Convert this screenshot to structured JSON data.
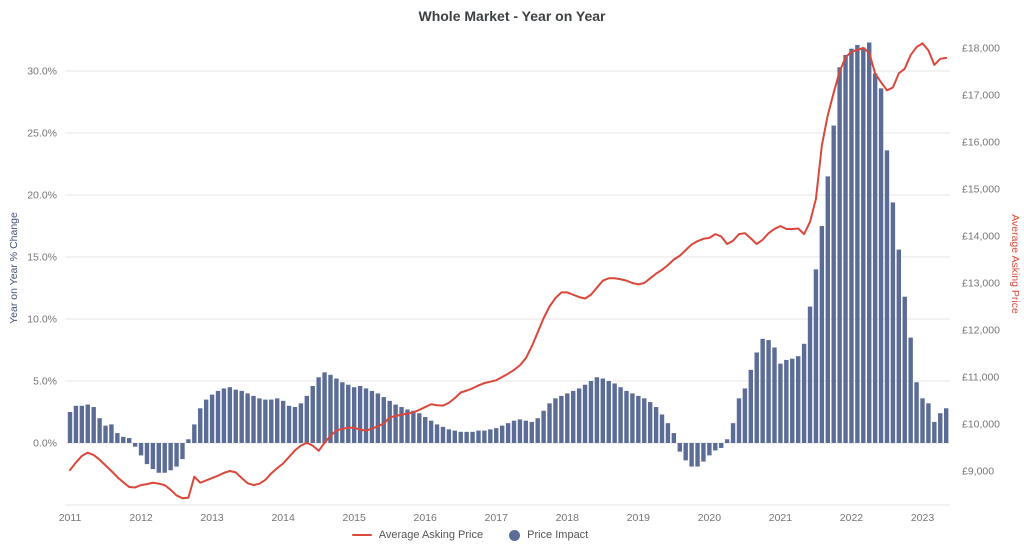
{
  "title": "Whole Market - Year on Year",
  "legend": {
    "line_series_label": "Average Asking Price",
    "bar_series_label": "Price Impact"
  },
  "axes": {
    "left_title": "Year on Year % Change",
    "right_title": "Average Asking Price",
    "left_tick_labels": [
      "0.0%",
      "5.0%",
      "10.0%",
      "15.0%",
      "20.0%",
      "25.0%",
      "30.0%"
    ],
    "right_tick_labels": [
      "£9,000",
      "£10,000",
      "£11,000",
      "£12,000",
      "£13,000",
      "£14,000",
      "£15,000",
      "£16,000",
      "£17,000",
      "£18,000"
    ],
    "x_tick_labels": [
      "2011",
      "2012",
      "2013",
      "2014",
      "2015",
      "2016",
      "2017",
      "2018",
      "2019",
      "2020",
      "2021",
      "2022",
      "2023"
    ]
  },
  "colors": {
    "bar": "#5b6c97",
    "line": "#d9483b",
    "gridline": "#e6e6e6",
    "tick_text": "#757575",
    "title_text": "#3c4043",
    "left_axis_title_text": "#44517a"
  },
  "chart_data": {
    "type": "combo: monthly bars + line",
    "title": "Whole Market - Year on Year",
    "x_start": "2011-01",
    "x_frequency": "monthly",
    "x_tick_labels": [
      "2011",
      "2012",
      "2013",
      "2014",
      "2015",
      "2016",
      "2017",
      "2018",
      "2019",
      "2020",
      "2021",
      "2022",
      "2023"
    ],
    "left_axis": {
      "label": "Year on Year % Change",
      "unit": "percent",
      "range": [
        -5,
        32.5
      ],
      "tick_step": 5,
      "ticks": [
        0,
        5,
        10,
        15,
        20,
        25,
        30
      ]
    },
    "right_axis": {
      "label": "Average Asking Price",
      "unit": "GBP",
      "range": [
        9000,
        18000
      ],
      "tick_step": 1000,
      "ticks": [
        9000,
        10000,
        11000,
        12000,
        13000,
        14000,
        15000,
        16000,
        17000,
        18000
      ]
    },
    "grid": true,
    "legend_position": "bottom-center",
    "series": [
      {
        "name": "Price Impact",
        "type": "bar",
        "axis": "left",
        "unit": "% year-on-year",
        "values": [
          2.5,
          3.0,
          3.0,
          3.1,
          2.9,
          2.0,
          1.4,
          1.5,
          0.8,
          0.5,
          0.4,
          -0.3,
          -1.0,
          -1.7,
          -2.1,
          -2.4,
          -2.4,
          -2.2,
          -1.9,
          -1.3,
          0.3,
          1.5,
          2.8,
          3.5,
          3.9,
          4.2,
          4.4,
          4.5,
          4.3,
          4.2,
          4.0,
          3.8,
          3.6,
          3.5,
          3.5,
          3.6,
          3.4,
          3.0,
          2.9,
          3.2,
          3.8,
          4.6,
          5.3,
          5.7,
          5.5,
          5.2,
          4.9,
          4.7,
          4.5,
          4.6,
          4.4,
          4.2,
          4.0,
          3.7,
          3.4,
          3.1,
          2.9,
          2.7,
          2.6,
          2.4,
          2.1,
          1.8,
          1.5,
          1.3,
          1.1,
          1.0,
          0.9,
          0.9,
          0.9,
          1.0,
          1.0,
          1.1,
          1.2,
          1.4,
          1.6,
          1.8,
          1.9,
          1.8,
          1.7,
          2.0,
          2.6,
          3.2,
          3.6,
          3.8,
          4.0,
          4.2,
          4.4,
          4.7,
          5.0,
          5.3,
          5.2,
          5.0,
          4.8,
          4.5,
          4.2,
          4.0,
          3.8,
          3.6,
          3.3,
          2.9,
          2.3,
          1.6,
          0.8,
          -0.7,
          -1.4,
          -1.9,
          -1.9,
          -1.5,
          -1.0,
          -0.6,
          -0.4,
          0.3,
          1.6,
          3.6,
          4.4,
          5.9,
          7.3,
          8.4,
          8.3,
          7.7,
          6.4,
          6.7,
          6.8,
          7.0,
          8.0,
          11.0,
          14.0,
          17.5,
          21.5,
          25.6,
          30.3,
          31.3,
          31.8,
          32.1,
          31.9,
          32.3,
          29.8,
          28.6,
          23.6,
          19.4,
          15.6,
          11.8,
          8.5,
          4.9,
          3.6,
          3.2,
          1.7,
          2.4,
          2.8
        ]
      },
      {
        "name": "Average Asking Price",
        "type": "line",
        "axis": "right",
        "unit": "GBP",
        "values": [
          9020,
          9180,
          9320,
          9390,
          9340,
          9240,
          9120,
          9000,
          8870,
          8760,
          8660,
          8650,
          8700,
          8720,
          8750,
          8730,
          8700,
          8600,
          8480,
          8420,
          8430,
          8880,
          8750,
          8800,
          8850,
          8900,
          8960,
          9000,
          8970,
          8850,
          8740,
          8700,
          8730,
          8810,
          8950,
          9060,
          9160,
          9300,
          9440,
          9540,
          9600,
          9540,
          9430,
          9600,
          9750,
          9860,
          9900,
          9920,
          9920,
          9880,
          9860,
          9900,
          9950,
          10010,
          10140,
          10170,
          10200,
          10220,
          10250,
          10300,
          10360,
          10420,
          10400,
          10390,
          10450,
          10550,
          10670,
          10710,
          10760,
          10820,
          10870,
          10900,
          10930,
          11000,
          11070,
          11150,
          11250,
          11400,
          11650,
          11950,
          12250,
          12500,
          12680,
          12800,
          12800,
          12750,
          12700,
          12670,
          12750,
          12900,
          13050,
          13100,
          13100,
          13080,
          13050,
          13000,
          12970,
          13000,
          13100,
          13200,
          13280,
          13380,
          13500,
          13580,
          13700,
          13820,
          13890,
          13940,
          13960,
          14040,
          13990,
          13830,
          13900,
          14040,
          14060,
          13950,
          13830,
          13920,
          14060,
          14150,
          14210,
          14150,
          14150,
          14160,
          14040,
          14300,
          14790,
          15930,
          16570,
          17050,
          17500,
          17800,
          17920,
          17960,
          18000,
          17900,
          17460,
          17270,
          17100,
          17160,
          17460,
          17560,
          17850,
          18020,
          18100,
          17950,
          17640,
          17770,
          17790
        ]
      }
    ]
  }
}
